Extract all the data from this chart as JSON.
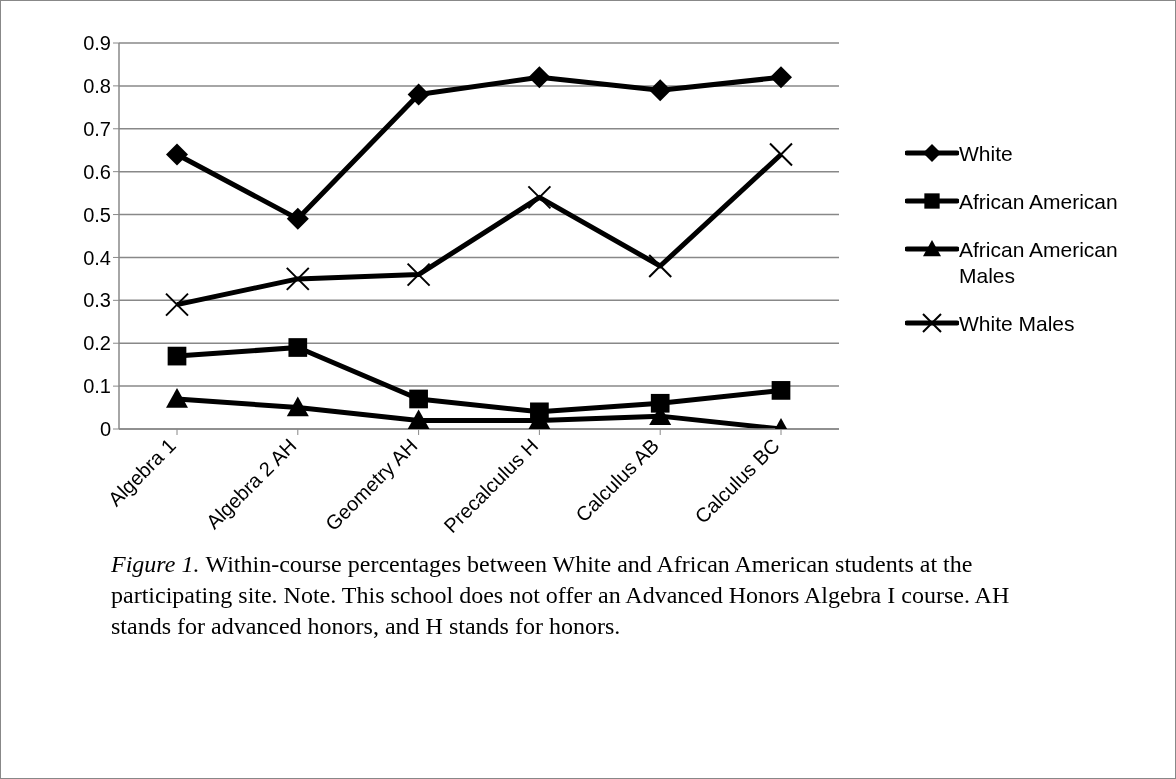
{
  "chart_data": {
    "type": "line",
    "categories": [
      "Algebra 1",
      "Algebra 2 AH",
      "Geometry AH",
      "Precalculus H",
      "Calculus AB",
      "Calculus BC"
    ],
    "series": [
      {
        "name": "White",
        "color": "#000000",
        "marker": "diamond",
        "values": [
          0.64,
          0.49,
          0.78,
          0.82,
          0.79,
          0.82
        ]
      },
      {
        "name": "African American",
        "color": "#000000",
        "marker": "square",
        "values": [
          0.17,
          0.19,
          0.07,
          0.04,
          0.06,
          0.09
        ]
      },
      {
        "name": "African American Males",
        "color": "#000000",
        "marker": "triangle",
        "values": [
          0.07,
          0.05,
          0.02,
          0.02,
          0.03,
          0.0
        ]
      },
      {
        "name": "White Males",
        "color": "#000000",
        "marker": "cross",
        "values": [
          0.29,
          0.35,
          0.36,
          0.54,
          0.38,
          0.64
        ]
      }
    ],
    "ylim": [
      0,
      0.9
    ],
    "yticks": [
      0,
      0.1,
      0.2,
      0.3,
      0.4,
      0.5,
      0.6,
      0.7,
      0.8,
      0.9
    ],
    "grid": "y",
    "legend": "right",
    "annotations": [
      "Figure 1.",
      "Within-course percentages between White and African American students at the participating site. Note. This school does not offer an Advanced Honors Algebra I course. AH stands for advanced honors, and H stands for honors."
    ]
  }
}
